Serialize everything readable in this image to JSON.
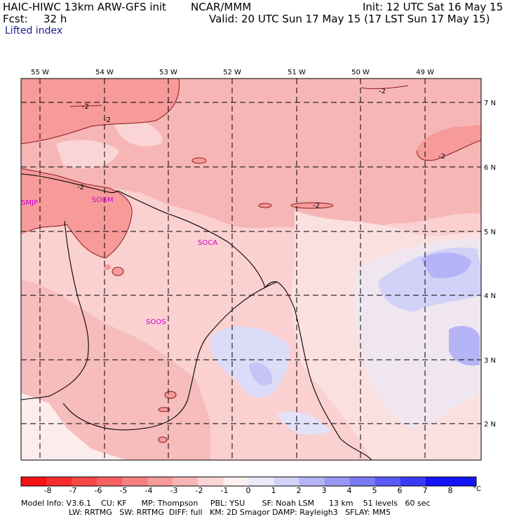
{
  "header": {
    "model": "HAIC-HIWC 13km ARW-GFS init",
    "org": "NCAR/MMM",
    "init": "Init: 12 UTC Sat 16 May 15",
    "fcst_label": "Fcst:",
    "fcst_value": "32 h",
    "valid": "Valid: 20 UTC Sun 17 May 15 (17 LST Sun 17 May 15)",
    "field": "Lifted index"
  },
  "map": {
    "lon_labels": [
      "55 W",
      "54 W",
      "53 W",
      "52 W",
      "51 W",
      "50 W",
      "49 W"
    ],
    "lat_labels": [
      "7 N",
      "6 N",
      "5 N",
      "4 N",
      "3 N",
      "2 N"
    ],
    "stations": [
      "SMJP",
      "SOGM",
      "SOCA",
      "SOOS"
    ],
    "contour_labels": [
      "-2",
      "-2",
      "-2",
      "-2",
      "-2",
      "-2"
    ]
  },
  "colorbar": {
    "labels": [
      "-8",
      "-7",
      "-6",
      "-5",
      "-4",
      "-3",
      "-2",
      "-1",
      "0",
      "1",
      "2",
      "3",
      "4",
      "5",
      "6",
      "7",
      "8"
    ],
    "unit": "°C",
    "colors": [
      "#f61212",
      "#f62c2c",
      "#f64646",
      "#f66262",
      "#f67f7f",
      "#f69a9a",
      "#f7b6b6",
      "#fbd5d5",
      "#fef0f0",
      "#eaeafb",
      "#d2d2f8",
      "#b4b4f6",
      "#9898f4",
      "#7a7af4",
      "#5a5af4",
      "#3a3af4",
      "#1414f6"
    ]
  },
  "footer": {
    "line1": "Model Info: V3.6.1    CU: KF      MP: Thompson     PBL: YSU       SF: Noah LSM      13 km    51 levels   60 sec",
    "line2": "LW: RRTMG   SW: RRTMG  DIFF: full   KM: 2D Smagor DAMP: Rayleigh3   SFLAY: MM5"
  }
}
